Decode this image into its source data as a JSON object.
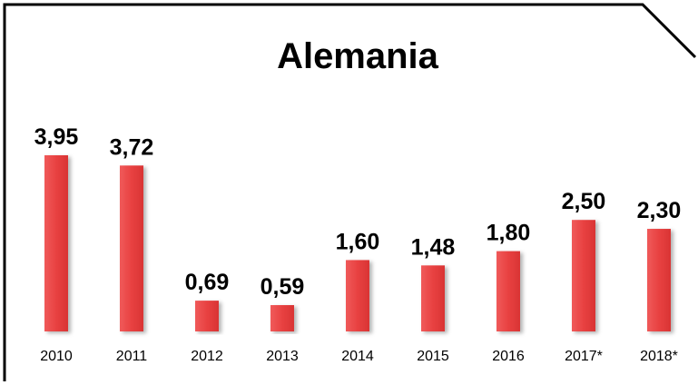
{
  "chart_data": {
    "type": "bar",
    "title": "Alemania",
    "categories": [
      "2010",
      "2011",
      "2012",
      "2013",
      "2014",
      "2015",
      "2016",
      "2017*",
      "2018*"
    ],
    "values": [
      3.95,
      3.72,
      0.69,
      0.59,
      1.6,
      1.48,
      1.8,
      2.5,
      2.3
    ],
    "value_labels": [
      "3,95",
      "3,72",
      "0,69",
      "0,59",
      "1,60",
      "1,48",
      "1,80",
      "2,50",
      "2,30"
    ],
    "color": "#e84141"
  }
}
